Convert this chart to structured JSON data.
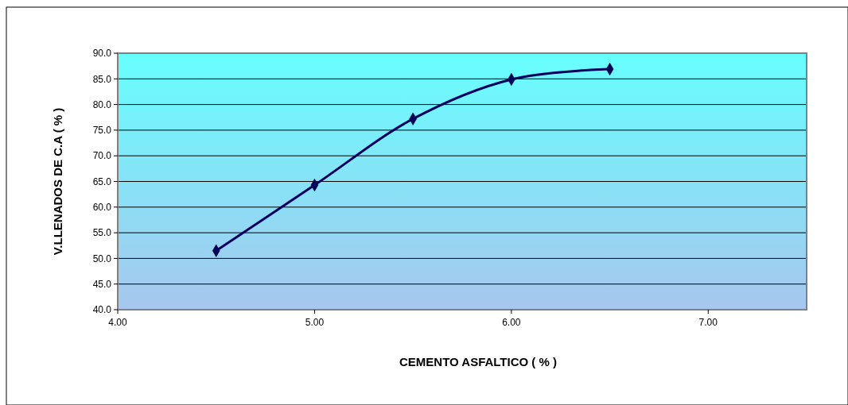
{
  "chart_data": {
    "type": "line",
    "xlabel": "CEMENTO ASFALTICO ( % )",
    "ylabel": "V.LLENADOS DE C.A ( % )",
    "x": [
      4.5,
      5.0,
      5.5,
      6.0,
      6.5
    ],
    "series": [
      {
        "color": "#000060",
        "values": [
          51.5,
          64.3,
          77.2,
          84.9,
          86.9
        ]
      }
    ],
    "marker": "diamond",
    "line_style": "solid",
    "grid": "y",
    "xlim": [
      4,
      7.5
    ],
    "xticks": [
      {
        "value": 4,
        "label": "4.00"
      },
      {
        "value": 5,
        "label": "5.00"
      },
      {
        "value": 6,
        "label": "6.00"
      },
      {
        "value": 7,
        "label": "7.00"
      }
    ],
    "ylim": [
      40,
      90
    ],
    "yticks": [
      {
        "value": 40,
        "label": "40.0"
      },
      {
        "value": 45,
        "label": "45.0"
      },
      {
        "value": 50,
        "label": "50.0"
      },
      {
        "value": 55,
        "label": "55.0"
      },
      {
        "value": 60,
        "label": "60.0"
      },
      {
        "value": 65,
        "label": "65.0"
      },
      {
        "value": 70,
        "label": "70.0"
      },
      {
        "value": 75,
        "label": "75.0"
      },
      {
        "value": 80,
        "label": "80.0"
      },
      {
        "value": 85,
        "label": "85.0"
      },
      {
        "value": 90,
        "label": "90.0"
      }
    ]
  }
}
